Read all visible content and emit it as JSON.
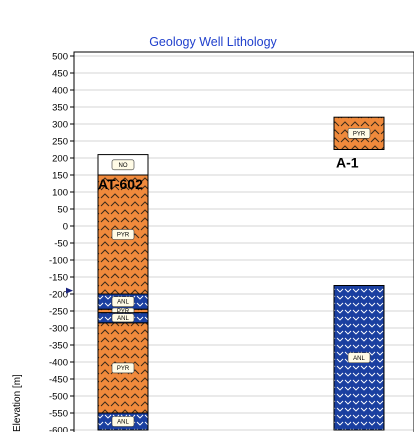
{
  "chart_data": {
    "type": "table",
    "title": "Geology Well Lithology",
    "ylabel": "Elevation [m]",
    "ylim": [
      -600,
      500
    ],
    "ytick_step": 50,
    "grid": true,
    "colors": {
      "title": "#1f3fcc",
      "PYR_fill": "#f08a3c",
      "PYR_hatch": "#3a2a1a",
      "ANL_fill": "#1a3fa0",
      "ANL_hatch": "#ffffff",
      "NO_fill": "#ffffff",
      "grid": "#d6d6d6",
      "marker": "#1a237e"
    },
    "marker_elevation": -190,
    "wells": [
      {
        "name": "AT-602",
        "intervals": [
          {
            "top": 210,
            "bottom": 150,
            "code": "NO"
          },
          {
            "top": 150,
            "bottom": -200,
            "code": "PYR"
          },
          {
            "top": -200,
            "bottom": -245,
            "code": "ANL"
          },
          {
            "top": -245,
            "bottom": -255,
            "code": "PYR"
          },
          {
            "top": -255,
            "bottom": -285,
            "code": "ANL"
          },
          {
            "top": -285,
            "bottom": -550,
            "code": "PYR"
          },
          {
            "top": -550,
            "bottom": -600,
            "code": "ANL"
          }
        ]
      },
      {
        "name": "A-1",
        "intervals": [
          {
            "top": 320,
            "bottom": 225,
            "code": "PYR"
          },
          {
            "top": -175,
            "bottom": -600,
            "code": "ANL"
          }
        ]
      }
    ]
  }
}
